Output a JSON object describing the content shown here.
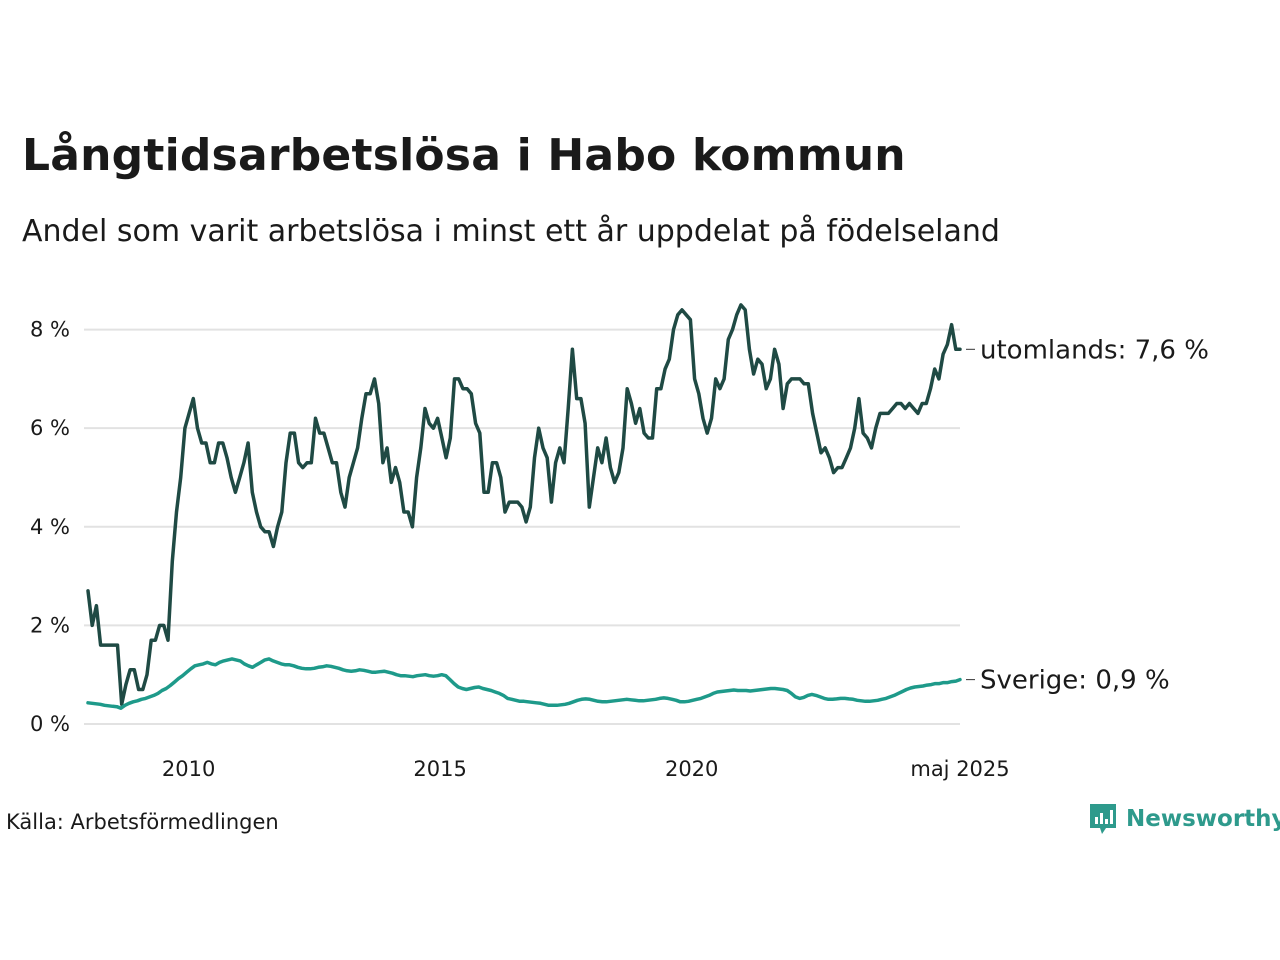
{
  "title": "Långtidsarbetslösa i Habo kommun",
  "subtitle": "Andel som varit arbetslösa i minst ett år uppdelat på födelseland",
  "source": "Källa: Arbetsförmedlingen",
  "brand": "Newsworthy",
  "colors": {
    "utomlands": "#1f4a44",
    "sverige": "#1e9a8a",
    "grid": "#e2e2e2",
    "brand": "#2e9a8c"
  },
  "chart_data": {
    "type": "line",
    "title": "Långtidsarbetslösa i Habo kommun",
    "subtitle": "Andel som varit arbetslösa i minst ett år uppdelat på födelseland",
    "ylim": [
      0,
      8.6
    ],
    "y_ticks": [
      0,
      2,
      4,
      6,
      8
    ],
    "y_tick_labels": [
      "0 %",
      "2 %",
      "4 %",
      "6 %",
      "8 %"
    ],
    "x_start": "2008-01",
    "x_end": "2025-05",
    "x_ticks": [
      "2010-01",
      "2015-01",
      "2020-01",
      "2025-05"
    ],
    "x_tick_labels": [
      "2010",
      "2015",
      "2020",
      "maj 2025"
    ],
    "grid": true,
    "series": [
      {
        "name": "utomlands",
        "end_label": "utomlands: 7,6 %",
        "values": [
          2.7,
          2.0,
          2.4,
          1.6,
          1.6,
          1.6,
          1.6,
          1.6,
          0.4,
          0.8,
          1.1,
          1.1,
          0.7,
          0.7,
          1.0,
          1.7,
          1.7,
          2.0,
          2.0,
          1.7,
          3.3,
          4.3,
          5.0,
          6.0,
          6.3,
          6.6,
          6.0,
          5.7,
          5.7,
          5.3,
          5.3,
          5.7,
          5.7,
          5.4,
          5.0,
          4.7,
          5.0,
          5.3,
          5.7,
          4.7,
          4.3,
          4.0,
          3.9,
          3.9,
          3.6,
          4.0,
          4.3,
          5.3,
          5.9,
          5.9,
          5.3,
          5.2,
          5.3,
          5.3,
          6.2,
          5.9,
          5.9,
          5.6,
          5.3,
          5.3,
          4.7,
          4.4,
          5.0,
          5.3,
          5.6,
          6.2,
          6.7,
          6.7,
          7.0,
          6.5,
          5.3,
          5.6,
          4.9,
          5.2,
          4.9,
          4.3,
          4.3,
          4.0,
          5.0,
          5.6,
          6.4,
          6.1,
          6.0,
          6.2,
          5.8,
          5.4,
          5.8,
          7.0,
          7.0,
          6.8,
          6.8,
          6.7,
          6.1,
          5.9,
          4.7,
          4.7,
          5.3,
          5.3,
          5.0,
          4.3,
          4.5,
          4.5,
          4.5,
          4.4,
          4.1,
          4.4,
          5.4,
          6.0,
          5.6,
          5.4,
          4.5,
          5.3,
          5.6,
          5.3,
          6.4,
          7.6,
          6.6,
          6.6,
          6.1,
          4.4,
          5.0,
          5.6,
          5.3,
          5.8,
          5.2,
          4.9,
          5.1,
          5.6,
          6.8,
          6.5,
          6.1,
          6.4,
          5.9,
          5.8,
          5.8,
          6.8,
          6.8,
          7.2,
          7.4,
          8.0,
          8.3,
          8.4,
          8.3,
          8.2,
          7.0,
          6.7,
          6.2,
          5.9,
          6.2,
          7.0,
          6.8,
          7.0,
          7.8,
          8.0,
          8.3,
          8.5,
          8.4,
          7.6,
          7.1,
          7.4,
          7.3,
          6.8,
          7.0,
          7.6,
          7.3,
          6.4,
          6.9,
          7.0,
          7.0,
          7.0,
          6.9,
          6.9,
          6.3,
          5.9,
          5.5,
          5.6,
          5.4,
          5.1,
          5.2,
          5.2,
          5.4,
          5.6,
          6.0,
          6.6,
          5.9,
          5.8,
          5.6,
          6.0,
          6.3,
          6.3,
          6.3,
          6.4,
          6.5,
          6.5,
          6.4,
          6.5,
          6.4,
          6.3,
          6.5,
          6.5,
          6.8,
          7.2,
          7.0,
          7.5,
          7.7,
          8.1,
          7.6,
          7.6
        ]
      },
      {
        "name": "Sverige",
        "end_label": "Sverige: 0,9 %",
        "values": [
          0.43,
          0.42,
          0.41,
          0.4,
          0.38,
          0.37,
          0.36,
          0.35,
          0.32,
          0.38,
          0.42,
          0.45,
          0.47,
          0.5,
          0.52,
          0.55,
          0.58,
          0.62,
          0.68,
          0.72,
          0.78,
          0.85,
          0.92,
          0.98,
          1.05,
          1.12,
          1.18,
          1.2,
          1.22,
          1.25,
          1.22,
          1.2,
          1.25,
          1.28,
          1.3,
          1.32,
          1.3,
          1.28,
          1.22,
          1.18,
          1.15,
          1.2,
          1.25,
          1.3,
          1.32,
          1.28,
          1.25,
          1.22,
          1.2,
          1.2,
          1.18,
          1.15,
          1.13,
          1.12,
          1.12,
          1.13,
          1.15,
          1.16,
          1.18,
          1.17,
          1.15,
          1.13,
          1.1,
          1.08,
          1.07,
          1.08,
          1.1,
          1.09,
          1.07,
          1.05,
          1.05,
          1.06,
          1.07,
          1.05,
          1.03,
          1.0,
          0.98,
          0.98,
          0.97,
          0.96,
          0.98,
          0.99,
          1.0,
          0.98,
          0.97,
          0.98,
          1.0,
          0.98,
          0.9,
          0.82,
          0.75,
          0.72,
          0.7,
          0.72,
          0.74,
          0.75,
          0.72,
          0.7,
          0.68,
          0.65,
          0.62,
          0.58,
          0.52,
          0.5,
          0.48,
          0.46,
          0.46,
          0.45,
          0.44,
          0.43,
          0.42,
          0.4,
          0.38,
          0.38,
          0.38,
          0.39,
          0.4,
          0.42,
          0.45,
          0.48,
          0.5,
          0.51,
          0.5,
          0.48,
          0.46,
          0.45,
          0.45,
          0.46,
          0.47,
          0.48,
          0.49,
          0.5,
          0.49,
          0.48,
          0.47,
          0.47,
          0.48,
          0.49,
          0.5,
          0.52,
          0.53,
          0.52,
          0.5,
          0.48,
          0.45,
          0.45,
          0.46,
          0.48,
          0.5,
          0.52,
          0.55,
          0.58,
          0.62,
          0.65,
          0.66,
          0.67,
          0.68,
          0.69,
          0.68,
          0.68,
          0.68,
          0.67,
          0.68,
          0.69,
          0.7,
          0.71,
          0.72,
          0.72,
          0.71,
          0.7,
          0.68,
          0.62,
          0.55,
          0.52,
          0.54,
          0.58,
          0.6,
          0.58,
          0.55,
          0.52,
          0.5,
          0.5,
          0.51,
          0.52,
          0.52,
          0.51,
          0.5,
          0.48,
          0.47,
          0.46,
          0.46,
          0.47,
          0.48,
          0.5,
          0.52,
          0.55,
          0.58,
          0.62,
          0.66,
          0.7,
          0.73,
          0.75,
          0.76,
          0.77,
          0.79,
          0.8,
          0.82,
          0.82,
          0.84,
          0.84,
          0.86,
          0.87,
          0.9
        ]
      }
    ]
  }
}
